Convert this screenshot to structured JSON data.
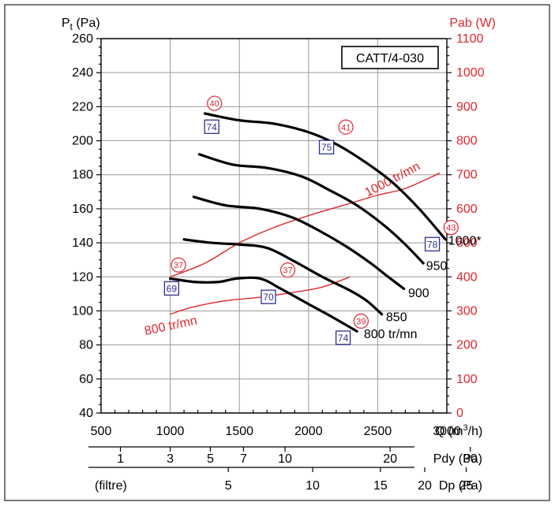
{
  "chart_data": {
    "type": "line",
    "model": "CATT/4-030",
    "ylabel_left": "Pt (Pa)",
    "ylabel_left_main": "P",
    "ylabel_left_sub": "t",
    "ylabel_left_unit": " (Pa)",
    "ylabel_right": "Pab (W)",
    "xlabel": "Q (m³/h)",
    "xlabel_main": "Q (m",
    "xlabel_sup": "3",
    "xlabel_end": "/h)",
    "xlim": [
      500,
      3000
    ],
    "ylim_left": [
      40,
      260
    ],
    "ylim_right": [
      0,
      1100
    ],
    "x_ticks": [
      "500",
      "1000",
      "1500",
      "2000",
      "2500",
      "3000"
    ],
    "y_ticks_left": [
      "40",
      "60",
      "80",
      "100",
      "120",
      "140",
      "160",
      "180",
      "200",
      "220",
      "240",
      "260"
    ],
    "y_ticks_right": [
      "0",
      "100",
      "200",
      "300",
      "400",
      "500",
      "600",
      "700",
      "800",
      "900",
      "1000",
      "1100"
    ],
    "grid": true,
    "pressure_series": [
      {
        "name": "1000*",
        "x": [
          1250,
          1500,
          1750,
          2000,
          2200,
          2400,
          2600,
          2800,
          2990
        ],
        "y": [
          216,
          212,
          210,
          205,
          198,
          188,
          176,
          160,
          142
        ]
      },
      {
        "name": "950",
        "x": [
          1210,
          1450,
          1700,
          1950,
          2150,
          2350,
          2550,
          2700,
          2830
        ],
        "y": [
          192,
          186,
          184,
          179,
          171,
          162,
          150,
          139,
          128
        ]
      },
      {
        "name": "900",
        "x": [
          1170,
          1400,
          1650,
          1880,
          2080,
          2270,
          2450,
          2560,
          2690
        ],
        "y": [
          167,
          162,
          160,
          155,
          147,
          138,
          128,
          121,
          113
        ]
      },
      {
        "name": "850",
        "x": [
          1100,
          1300,
          1500,
          1700,
          1900,
          2100,
          2300,
          2420,
          2530
        ],
        "y": [
          142,
          140,
          139,
          137,
          129,
          120,
          112,
          106,
          98
        ]
      },
      {
        "name": "800 tr/mn",
        "x": [
          1000,
          1180,
          1350,
          1480,
          1650,
          1800,
          2000,
          2180,
          2350
        ],
        "y": [
          119,
          117,
          117,
          119,
          119,
          113,
          104,
          96,
          88
        ]
      }
    ],
    "power_series": [
      {
        "name": "1000 tr/mn",
        "x": [
          1000,
          1250,
          1500,
          1750,
          2000,
          2250,
          2500,
          2700,
          2950
        ],
        "y": [
          400,
          440,
          500,
          545,
          580,
          610,
          640,
          660,
          705
        ]
      },
      {
        "name": "800 tr/mn",
        "x": [
          1000,
          1150,
          1400,
          1650,
          1900,
          2100,
          2300
        ],
        "y": [
          290,
          310,
          330,
          340,
          355,
          370,
          400
        ]
      }
    ],
    "circle_markers": [
      {
        "label": "40",
        "x": 1320,
        "y": 222
      },
      {
        "label": "41",
        "x": 2270,
        "y": 208
      },
      {
        "label": "43",
        "x": 3030,
        "y": 149
      },
      {
        "label": "37",
        "x": 1060,
        "y": 127
      },
      {
        "label": "37",
        "x": 1850,
        "y": 124
      },
      {
        "label": "39",
        "x": 2380,
        "y": 94
      }
    ],
    "square_markers": [
      {
        "label": "74",
        "x": 1300,
        "y": 208
      },
      {
        "label": "75",
        "x": 2130,
        "y": 196
      },
      {
        "label": "78",
        "x": 2895,
        "y": 139
      },
      {
        "label": "69",
        "x": 1010,
        "y": 113
      },
      {
        "label": "70",
        "x": 1710,
        "y": 108
      },
      {
        "label": "74",
        "x": 2250,
        "y": 84
      }
    ],
    "curve_labels": [
      {
        "text": "1000*",
        "x": 3010,
        "y": 139
      },
      {
        "text": "950",
        "x": 2850,
        "y": 124
      },
      {
        "text": "900",
        "x": 2720,
        "y": 108
      },
      {
        "text": "850",
        "x": 2560,
        "y": 94
      },
      {
        "text": "800 tr/mn",
        "x": 2400,
        "y": 84
      }
    ],
    "power_labels": [
      {
        "text": "1000 tr/mn",
        "x": 2620,
        "y": 676,
        "angle": -28
      },
      {
        "text": "800 tr/mn",
        "x": 1010,
        "y": 245,
        "angle": -12
      }
    ],
    "pdy_axis": {
      "label": "Pdy (Pa)",
      "ticks": [
        {
          "text": "1",
          "q": 640
        },
        {
          "text": "3",
          "q": 1000
        },
        {
          "text": "5",
          "q": 1290
        },
        {
          "text": "7",
          "q": 1530
        },
        {
          "text": "10",
          "q": 1830
        },
        {
          "text": "20",
          "q": 2590
        },
        {
          "text": "30",
          "q": 3170
        }
      ]
    },
    "dp_axis": {
      "label": "Dp (Pa)",
      "prefix": "(filtre)",
      "ticks": [
        {
          "text": "5",
          "q": 1420
        },
        {
          "text": "10",
          "q": 2030
        },
        {
          "text": "15",
          "q": 2520
        },
        {
          "text": "20",
          "q": 2840
        },
        {
          "text": "25",
          "q": 3140
        }
      ]
    }
  }
}
